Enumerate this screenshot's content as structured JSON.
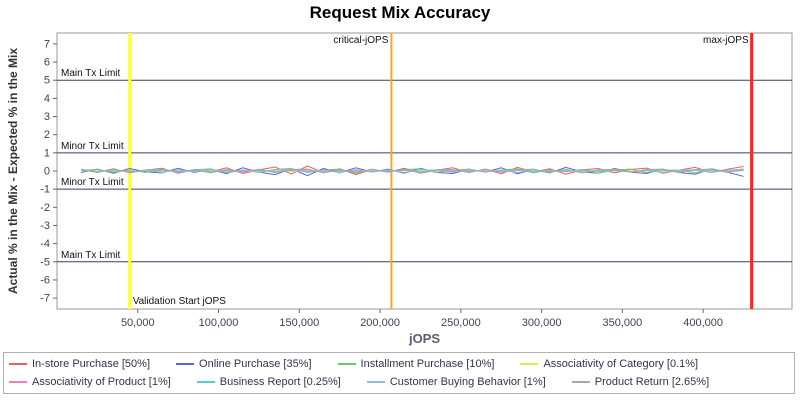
{
  "title": "Request Mix Accuracy",
  "x_axis": {
    "label": "jOPS",
    "ticks": [
      {
        "value": 50000,
        "label": "50,000"
      },
      {
        "value": 100000,
        "label": "100,000"
      },
      {
        "value": 150000,
        "label": "150,000"
      },
      {
        "value": 200000,
        "label": "200,000"
      },
      {
        "value": 250000,
        "label": "250,000"
      },
      {
        "value": 300000,
        "label": "300,000"
      },
      {
        "value": 350000,
        "label": "350,000"
      },
      {
        "value": 400000,
        "label": "400,000"
      }
    ]
  },
  "y_axis": {
    "label": "Actual % in the Mix - Expected % in the Mix",
    "ticks": [
      7,
      6,
      5,
      4,
      3,
      2,
      1,
      0,
      -1,
      -2,
      -3,
      -4,
      -5,
      -6,
      -7
    ]
  },
  "chart_data": {
    "type": "line",
    "title": "Request Mix Accuracy",
    "xlabel": "jOPS",
    "ylabel": "Actual % in the Mix - Expected % in the Mix",
    "xlim": [
      0,
      455000
    ],
    "ylim": [
      -7.6,
      7.6
    ],
    "grid": false,
    "legend_position": "bottom",
    "h_reference_lines": [
      {
        "label": "Main Tx Limit",
        "y": 5,
        "color": "#3c3c64"
      },
      {
        "label": "Minor Tx Limit",
        "y": 1,
        "color": "#3c3c64"
      },
      {
        "label": "Minor Tx Limit",
        "y": -1,
        "color": "#3c3c64"
      },
      {
        "label": "Main Tx Limit",
        "y": -5,
        "color": "#3c3c64"
      }
    ],
    "v_reference_lines": [
      {
        "label": "Validation Start jOPS",
        "x": 45000,
        "color": "#ffff33",
        "width": 3,
        "label_pos": "bottom",
        "label_side": "right"
      },
      {
        "label": "critical-jOPS",
        "x": 207000,
        "color": "#ffa520",
        "width": 2,
        "label_pos": "top",
        "label_side": "left"
      },
      {
        "label": "max-jOPS",
        "x": 430000,
        "color": "#ff2222",
        "width": 3,
        "label_pos": "top",
        "label_side": "left"
      }
    ],
    "x": [
      15000,
      25000,
      35000,
      45000,
      55000,
      65000,
      75000,
      85000,
      95000,
      105000,
      115000,
      125000,
      135000,
      145000,
      155000,
      165000,
      175000,
      185000,
      195000,
      205000,
      215000,
      225000,
      235000,
      245000,
      255000,
      265000,
      275000,
      285000,
      295000,
      305000,
      315000,
      325000,
      335000,
      345000,
      355000,
      365000,
      375000,
      385000,
      395000,
      405000,
      415000,
      425000
    ],
    "series": [
      {
        "name": "In-store Purchase [50%]",
        "color": "#e95f5f",
        "values": [
          0.1,
          -0.06,
          0.12,
          -0.1,
          0.05,
          0.15,
          -0.12,
          0.08,
          -0.05,
          0.18,
          -0.14,
          0.06,
          0.22,
          -0.16,
          0.28,
          -0.1,
          0.12,
          -0.2,
          0.08,
          -0.06,
          0.15,
          -0.12,
          0.05,
          0.18,
          -0.08,
          0.1,
          -0.15,
          0.2,
          -0.05,
          0.12,
          -0.18,
          0.06,
          0.14,
          -0.1,
          0.08,
          0.16,
          -0.12,
          0.05,
          0.2,
          -0.08,
          0.1,
          0.25
        ]
      },
      {
        "name": "Online Purchase [35%]",
        "color": "#6161c8",
        "values": [
          -0.08,
          0.1,
          -0.12,
          0.14,
          -0.05,
          -0.1,
          0.15,
          -0.08,
          0.1,
          -0.15,
          0.18,
          -0.06,
          -0.2,
          0.12,
          -0.25,
          0.14,
          -0.1,
          0.18,
          -0.06,
          0.1,
          -0.12,
          0.15,
          -0.08,
          -0.14,
          0.1,
          -0.06,
          0.18,
          -0.15,
          0.08,
          -0.1,
          0.2,
          -0.05,
          -0.12,
          0.14,
          -0.06,
          -0.14,
          0.1,
          -0.08,
          -0.18,
          0.12,
          -0.06,
          -0.3
        ]
      },
      {
        "name": "Installment Purchase [10%]",
        "color": "#72c472",
        "values": [
          0.04,
          0.08,
          -0.06,
          0.05,
          -0.08,
          0.1,
          -0.05,
          0.07,
          0.12,
          -0.1,
          0.04,
          -0.07,
          0.09,
          0.14,
          -0.08,
          0.05,
          0.1,
          -0.12,
          0.06,
          -0.05,
          0.08,
          0.12,
          -0.08,
          0.04,
          0.1,
          -0.06,
          0.05,
          0.12,
          -0.1,
          0.06,
          -0.04,
          0.08,
          -0.12,
          0.05,
          0.1,
          -0.08,
          0.06,
          0.04,
          -0.1,
          0.08,
          -0.06,
          0.12
        ]
      },
      {
        "name": "Associativity of Category [0.1%]",
        "color": "#e6e652",
        "values": [
          0.02,
          -0.01,
          0.02,
          -0.02,
          0.01,
          0.02,
          -0.02,
          0.01,
          -0.01,
          0.02,
          -0.02,
          0.01,
          0.03,
          -0.02,
          0.02,
          -0.01,
          0.01,
          -0.03,
          0.02,
          -0.01,
          0.02,
          -0.02,
          0.01,
          0.02,
          -0.01,
          0.01,
          -0.02,
          0.03,
          -0.01,
          0.02,
          -0.02,
          0.01,
          0.02,
          -0.01,
          0.01,
          0.02,
          -0.02,
          0.01,
          0.03,
          -0.01,
          0.01,
          0.02
        ]
      },
      {
        "name": "Associativity of Product [1%]",
        "color": "#ea7fc3",
        "values": [
          0.05,
          -0.04,
          0.06,
          -0.05,
          0.03,
          -0.06,
          0.05,
          -0.03,
          0.06,
          -0.05,
          0.04,
          0.06,
          -0.05,
          0.03,
          0.07,
          -0.06,
          0.04,
          -0.05,
          0.06,
          -0.03,
          0.05,
          -0.06,
          0.04,
          0.05,
          -0.04,
          0.06,
          -0.05,
          0.03,
          0.06,
          -0.04,
          0.05,
          -0.06,
          0.03,
          0.05,
          -0.05,
          0.04,
          0.06,
          -0.03,
          0.05,
          -0.06,
          0.04,
          0.07
        ]
      },
      {
        "name": "Business Report [0.25%]",
        "color": "#5fcaca",
        "values": [
          0.03,
          -0.03,
          0.04,
          -0.04,
          0.02,
          0.04,
          -0.03,
          0.03,
          -0.04,
          0.04,
          -0.02,
          0.03,
          -0.04,
          0.05,
          -0.03,
          0.03,
          -0.05,
          0.04,
          -0.03,
          0.02,
          0.04,
          -0.04,
          0.03,
          -0.02,
          0.04,
          -0.03,
          0.02,
          0.05,
          -0.04,
          0.03,
          -0.03,
          0.04,
          -0.02,
          0.03,
          -0.04,
          0.02,
          0.04,
          -0.03,
          0.03,
          0.05,
          -0.04,
          0.03
        ]
      },
      {
        "name": "Customer Buying Behavior [1%]",
        "color": "#8fb7e8",
        "values": [
          0.07,
          -0.06,
          0.08,
          -0.07,
          0.05,
          -0.08,
          0.07,
          -0.05,
          0.08,
          -0.06,
          0.06,
          -0.08,
          0.07,
          0.09,
          -0.07,
          0.05,
          -0.09,
          0.08,
          -0.06,
          0.07,
          -0.08,
          0.06,
          0.05,
          -0.07,
          0.08,
          -0.05,
          0.06,
          -0.09,
          0.07,
          -0.06,
          0.08,
          -0.07,
          0.05,
          0.08,
          -0.06,
          0.07,
          -0.08,
          0.05,
          0.07,
          -0.09,
          0.06,
          0.08
        ]
      },
      {
        "name": "Product Return [2.65%]",
        "color": "#a8a8a8",
        "values": [
          0.09,
          -0.08,
          0.1,
          -0.09,
          0.06,
          0.1,
          -0.08,
          0.07,
          -0.1,
          0.09,
          -0.07,
          0.1,
          -0.09,
          0.08,
          0.11,
          -0.1,
          0.07,
          -0.08,
          0.1,
          -0.06,
          0.09,
          -0.1,
          0.07,
          0.08,
          -0.09,
          0.1,
          -0.07,
          0.06,
          0.1,
          -0.08,
          0.09,
          -0.1,
          0.06,
          0.09,
          -0.07,
          0.08,
          0.1,
          -0.09,
          0.07,
          0.11,
          -0.08,
          0.09
        ]
      }
    ]
  },
  "legend": {
    "items": [
      {
        "label": "In-store Purchase [50%]",
        "color": "#e95f5f"
      },
      {
        "label": "Online Purchase [35%]",
        "color": "#6161c8"
      },
      {
        "label": "Installment Purchase [10%]",
        "color": "#72c472"
      },
      {
        "label": "Associativity of Category [0.1%]",
        "color": "#e6e652"
      },
      {
        "label": "Associativity of Product [1%]",
        "color": "#ea7fc3"
      },
      {
        "label": "Business Report [0.25%]",
        "color": "#5fcaca"
      },
      {
        "label": "Customer Buying Behavior [1%]",
        "color": "#8fb7e8"
      },
      {
        "label": "Product Return [2.65%]",
        "color": "#a8a8a8"
      }
    ]
  }
}
